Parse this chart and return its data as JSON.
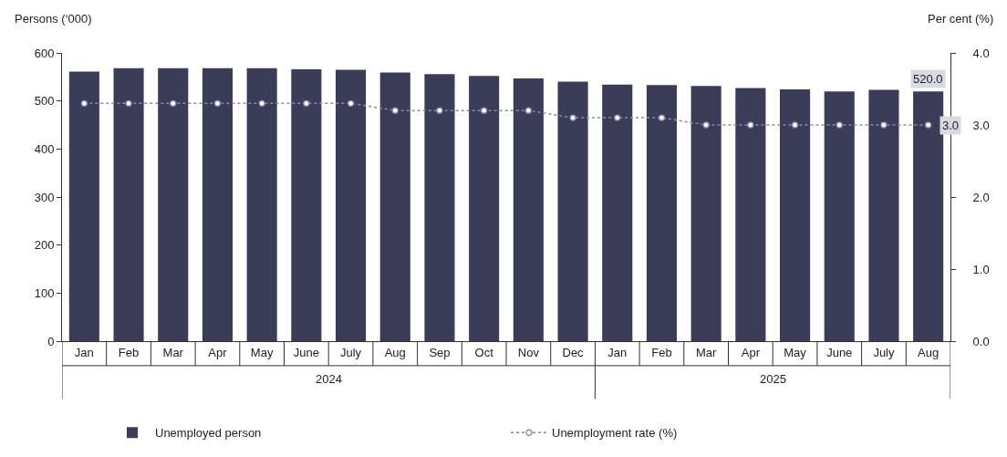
{
  "chart_data": {
    "type": "bar",
    "ylabel": "Persons (‘000)",
    "y2label": "Per cent (%)",
    "categories": [
      "Jan",
      "Feb",
      "Mar",
      "Apr",
      "May",
      "June",
      "July",
      "Aug",
      "Sep",
      "Oct",
      "Nov",
      "Dec",
      "Jan",
      "Feb",
      "Mar",
      "Apr",
      "May",
      "June",
      "July",
      "Aug"
    ],
    "annotations": [
      "2024",
      "2025"
    ],
    "series": [
      {
        "name": "Unemployed person",
        "color": "#3b3d58",
        "values": [
          561,
          568,
          568,
          568,
          568,
          566,
          565,
          559,
          556,
          552,
          547,
          540,
          534,
          533,
          531,
          527,
          524,
          520,
          523,
          520
        ],
        "value_labels": [
          null,
          null,
          null,
          null,
          null,
          null,
          null,
          null,
          null,
          null,
          null,
          null,
          null,
          null,
          null,
          null,
          null,
          null,
          null,
          "520.0"
        ]
      },
      {
        "name": "Unemployment rate (%)",
        "type": "line",
        "axis": "y2",
        "color": "#8a8aa8",
        "marker": "circle",
        "line_style": "dotted",
        "values": [
          3.3,
          3.3,
          3.3,
          3.3,
          3.3,
          3.3,
          3.3,
          3.2,
          3.2,
          3.2,
          3.2,
          3.1,
          3.1,
          3.1,
          3.0,
          3.0,
          3.0,
          3.0,
          3.0,
          3.0
        ],
        "value_labels": [
          null,
          null,
          null,
          null,
          null,
          null,
          null,
          null,
          null,
          null,
          null,
          null,
          null,
          null,
          null,
          null,
          null,
          null,
          null,
          "3.0"
        ]
      }
    ],
    "ylim": [
      0,
      600
    ],
    "yticks": [
      0,
      100,
      200,
      300,
      400,
      500,
      600
    ],
    "y2lim": [
      0,
      4
    ],
    "y2ticks": [
      {
        "value": 0,
        "label": "0.0"
      },
      {
        "value": 1,
        "label": "1.0"
      },
      {
        "value": 2,
        "label": "2.0"
      },
      {
        "value": 3,
        "label": "3.0"
      },
      {
        "value": 4,
        "label": "4.0"
      }
    ],
    "grid": false,
    "legend": "bottom"
  }
}
